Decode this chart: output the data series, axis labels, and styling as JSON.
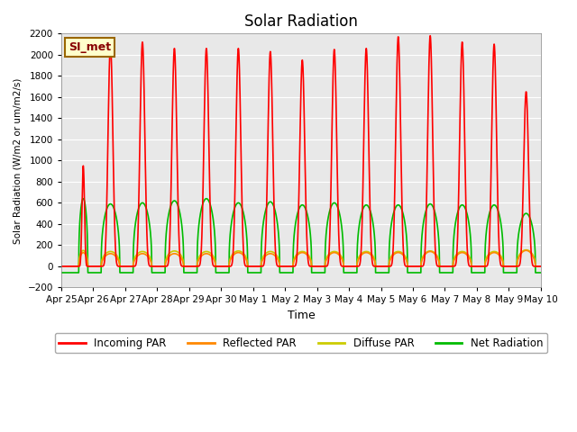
{
  "title": "Solar Radiation",
  "ylabel": "Solar Radiation (W/m2 or um/m2/s)",
  "xlabel": "Time",
  "ylim": [
    -200,
    2200
  ],
  "yticks": [
    -200,
    0,
    200,
    400,
    600,
    800,
    1000,
    1200,
    1400,
    1600,
    1800,
    2000,
    2200
  ],
  "bg_color": "#e8e8e8",
  "label_box": "SI_met",
  "label_box_bg": "#ffffcc",
  "label_box_border": "#996600",
  "label_box_text": "#880000",
  "series": {
    "incoming": {
      "color": "#ff0000",
      "label": "Incoming PAR",
      "lw": 1.2
    },
    "reflected": {
      "color": "#ff8800",
      "label": "Reflected PAR",
      "lw": 1.2
    },
    "diffuse": {
      "color": "#cccc00",
      "label": "Diffuse PAR",
      "lw": 1.2
    },
    "net": {
      "color": "#00bb00",
      "label": "Net Radiation",
      "lw": 1.2
    }
  },
  "n_days": 15,
  "tick_labels": [
    "Apr 25",
    "Apr 26",
    "Apr 27",
    "Apr 28",
    "Apr 29",
    "Apr 30",
    "May 1",
    "May 2",
    "May 3",
    "May 4",
    "May 5",
    "May 6",
    "May 7",
    "May 8",
    "May 9",
    "May 10"
  ],
  "incoming_peaks": [
    950,
    2100,
    2120,
    2060,
    2060,
    2060,
    2030,
    1950,
    2050,
    2060,
    2170,
    2180,
    2120,
    2100,
    1650
  ],
  "net_peaks": [
    640,
    590,
    600,
    620,
    640,
    600,
    610,
    580,
    600,
    580,
    580,
    590,
    580,
    580,
    500
  ],
  "reflected_peaks": [
    130,
    120,
    120,
    120,
    120,
    130,
    120,
    130,
    130,
    130,
    130,
    140,
    130,
    130,
    150
  ],
  "diffuse_peaks": [
    150,
    140,
    140,
    145,
    140,
    145,
    140,
    140,
    140,
    140,
    140,
    145,
    140,
    140,
    155
  ]
}
